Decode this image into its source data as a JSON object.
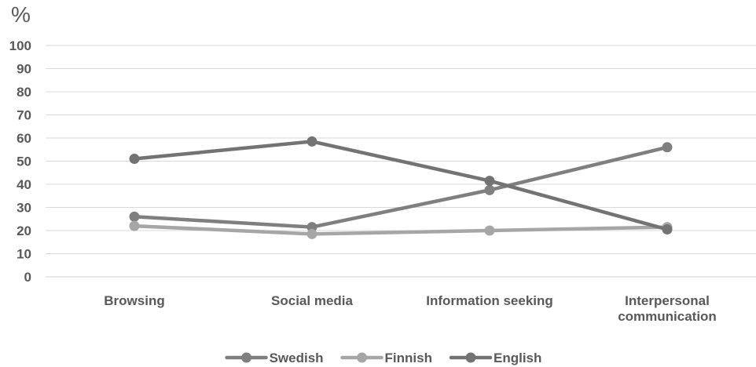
{
  "chart_data": {
    "type": "line",
    "unit_label": "%",
    "categories": [
      "Browsing",
      "Social media",
      "Information seeking",
      "Interpersonal communication"
    ],
    "category_lines": [
      [
        "Browsing"
      ],
      [
        "Social media"
      ],
      [
        "Information seeking"
      ],
      [
        "Interpersonal",
        "communication"
      ]
    ],
    "ylim": [
      0,
      100
    ],
    "yticks": [
      0,
      10,
      20,
      30,
      40,
      50,
      60,
      70,
      80,
      90,
      100
    ],
    "grid": true,
    "legend_position": "bottom",
    "series": [
      {
        "name": "Swedish",
        "values": [
          26,
          21.5,
          37.5,
          56
        ],
        "color": "#7f7f7f"
      },
      {
        "name": "Finnish",
        "values": [
          22,
          18.5,
          20,
          21.5
        ],
        "color": "#a6a6a6"
      },
      {
        "name": "English",
        "values": [
          51,
          58.5,
          41.5,
          20.5
        ],
        "color": "#737373"
      }
    ]
  }
}
